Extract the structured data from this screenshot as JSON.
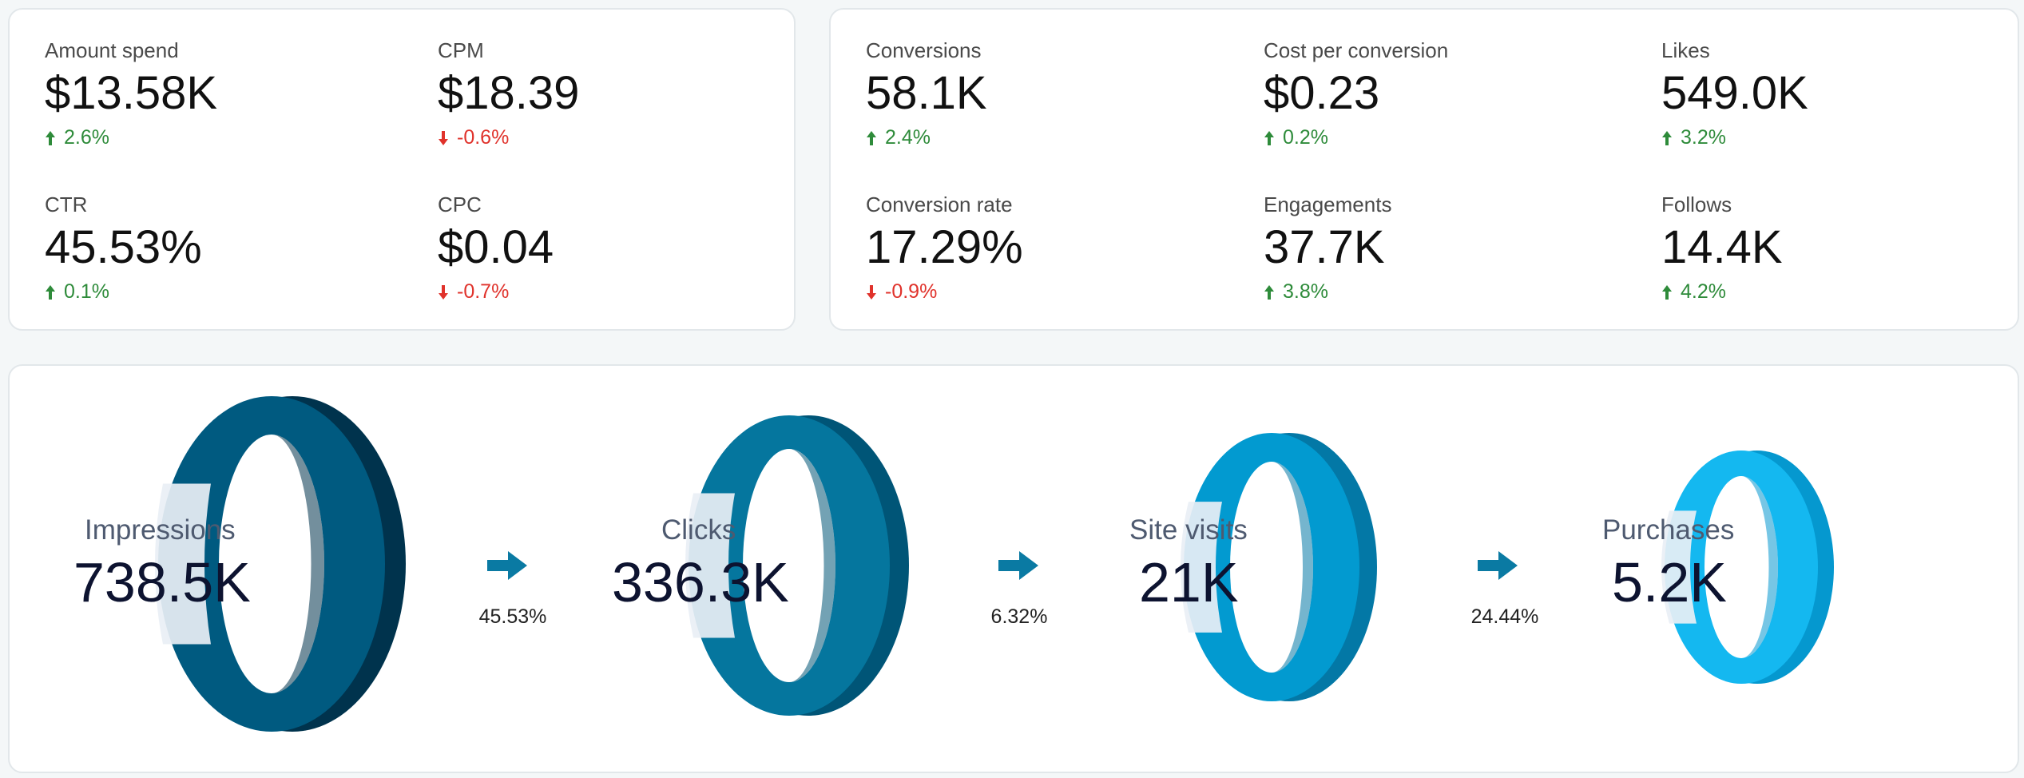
{
  "kpi_group_left": [
    {
      "label": "Amount spend",
      "value": "$13.58K",
      "delta": "2.6%",
      "direction": "up"
    },
    {
      "label": "CPM",
      "value": "$18.39",
      "delta": "-0.6%",
      "direction": "down"
    },
    {
      "label": "CTR",
      "value": "45.53%",
      "delta": "0.1%",
      "direction": "up"
    },
    {
      "label": "CPC",
      "value": "$0.04",
      "delta": "-0.7%",
      "direction": "down"
    }
  ],
  "kpi_group_right": [
    {
      "label": "Conversions",
      "value": "58.1K",
      "delta": "2.4%",
      "direction": "up"
    },
    {
      "label": "Cost per conversion",
      "value": "$0.23",
      "delta": "0.2%",
      "direction": "up"
    },
    {
      "label": "Likes",
      "value": "549.0K",
      "delta": "3.2%",
      "direction": "up"
    },
    {
      "label": "Conversion rate",
      "value": "17.29%",
      "delta": "-0.9%",
      "direction": "down"
    },
    {
      "label": "Engagements",
      "value": "37.7K",
      "delta": "3.8%",
      "direction": "up"
    },
    {
      "label": "Follows",
      "value": "14.4K",
      "delta": "4.2%",
      "direction": "up"
    }
  ],
  "funnel": {
    "stages": [
      {
        "label": "Impressions",
        "value": "738.5K",
        "color": "#005a80",
        "dark": "#00334d"
      },
      {
        "label": "Clicks",
        "value": "336.3K",
        "color": "#05769e",
        "dark": "#005577"
      },
      {
        "label": "Site visits",
        "value": "21K",
        "color": "#029ad0",
        "dark": "#0378a6"
      },
      {
        "label": "Purchases",
        "value": "5.2K",
        "color": "#14b8f0",
        "dark": "#0598cf"
      }
    ],
    "conversion_rates": [
      "45.53%",
      "6.32%",
      "24.44%"
    ],
    "arrow_color": "#0a7aa3"
  },
  "colors": {
    "up": "#2e8b3a",
    "down": "#e0322b"
  }
}
